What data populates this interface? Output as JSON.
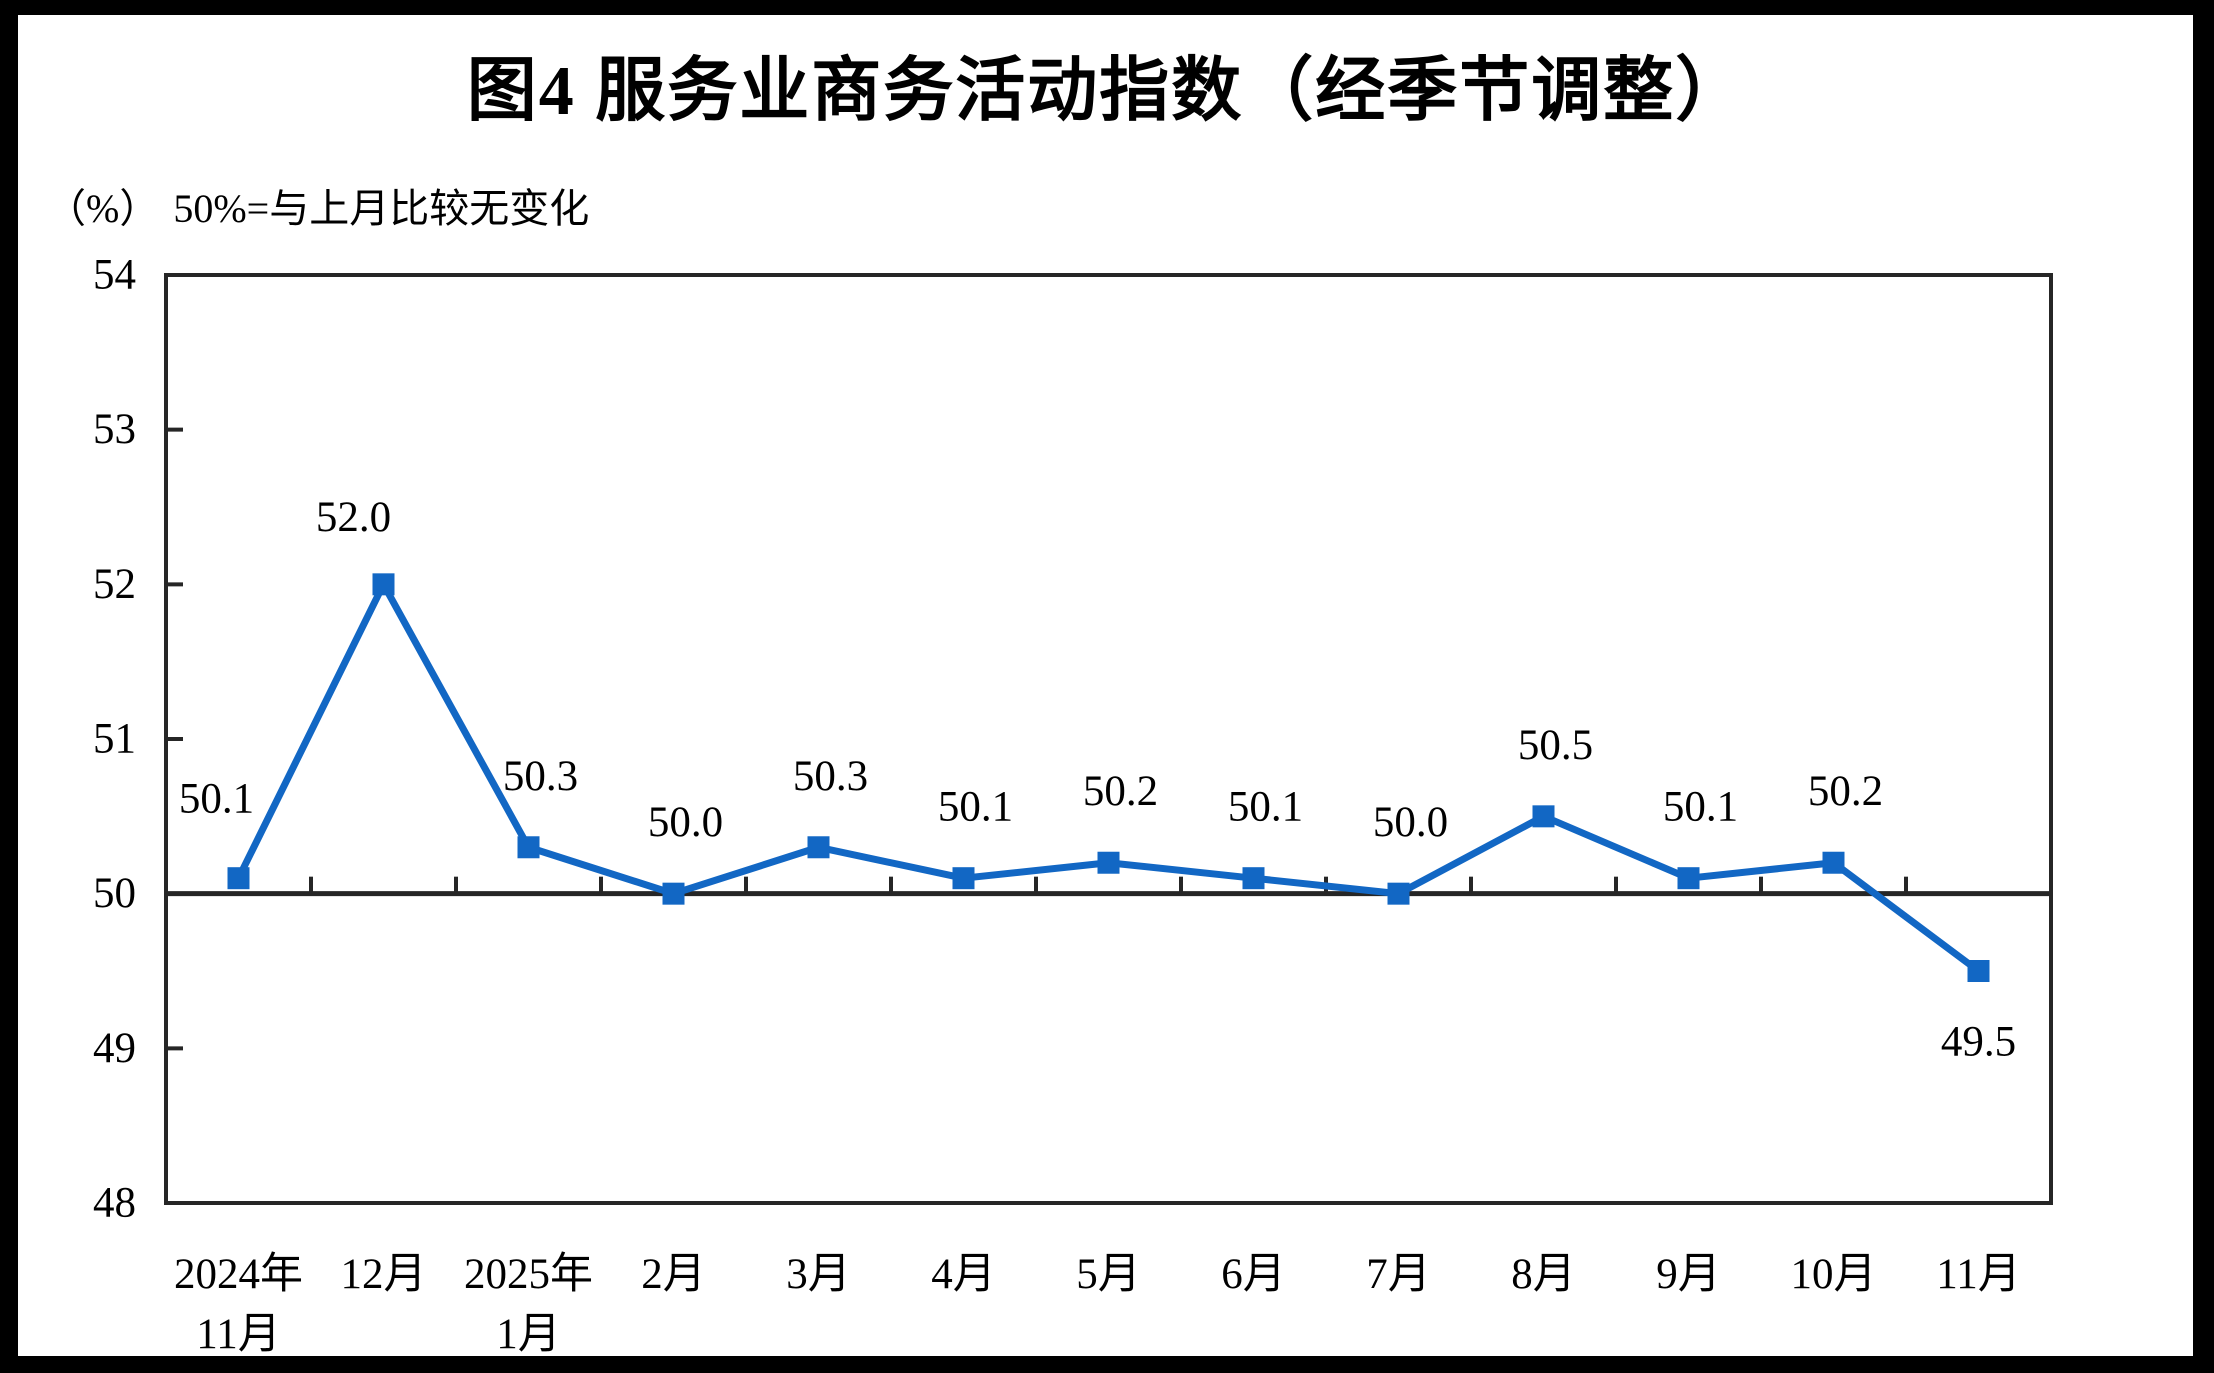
{
  "header": {
    "title": "图4  服务业商务活动指数（经季节调整）",
    "unit": "（%）",
    "subtitle": "50%=与上月比较无变化"
  },
  "chart_data": {
    "type": "line",
    "title": "图4 服务业商务活动指数（经季节调整）",
    "subtitle": "50%=与上月比较无变化",
    "unit": "（%）",
    "categories": [
      [
        "2024年",
        "11月"
      ],
      [
        "12月"
      ],
      [
        "2025年",
        "1月"
      ],
      [
        "2月"
      ],
      [
        "3月"
      ],
      [
        "4月"
      ],
      [
        "5月"
      ],
      [
        "6月"
      ],
      [
        "7月"
      ],
      [
        "8月"
      ],
      [
        "9月"
      ],
      [
        "10月"
      ],
      [
        "11月"
      ]
    ],
    "series": [
      {
        "name": "服务业商务活动指数",
        "values": [
          50.1,
          52.0,
          50.3,
          50.0,
          50.3,
          50.1,
          50.2,
          50.1,
          50.0,
          50.5,
          50.1,
          50.2,
          49.5
        ]
      }
    ],
    "data_labels": [
      "50.1",
      "52.0",
      "50.3",
      "50.0",
      "50.3",
      "50.1",
      "50.2",
      "50.1",
      "50.0",
      "50.5",
      "50.1",
      "50.2",
      "49.5"
    ],
    "ylim": [
      48,
      54
    ],
    "yticks": [
      48,
      49,
      50,
      51,
      52,
      53,
      54
    ],
    "ytick_labels": [
      "48",
      "49",
      "50",
      "51",
      "52",
      "53",
      "54"
    ],
    "reference_line": 50,
    "grid": false,
    "legend": "none",
    "colors": {
      "line": "#1267C4",
      "axis": "#262626",
      "text": "#000000",
      "page_background": "#ffffff",
      "frame": "#000000"
    }
  }
}
